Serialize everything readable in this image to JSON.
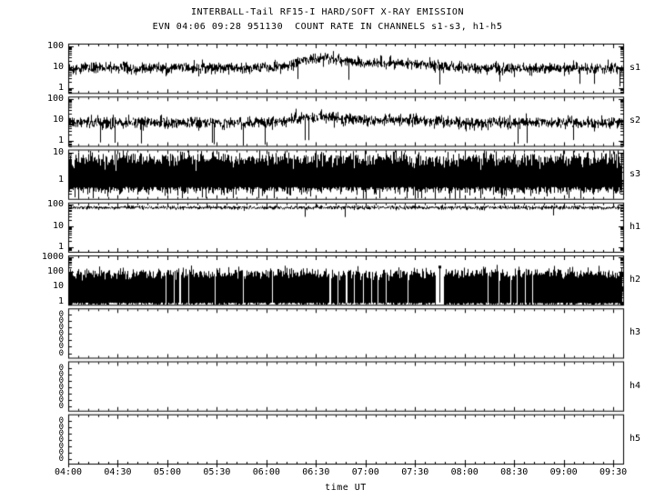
{
  "chart_data": {
    "type": "line",
    "title": "INTERBALL-Tail RF15-I HARD/SOFT X-RAY EMISSION",
    "subtitle": "EVN 04:06 09:28 951130  COUNT RATE IN CHANNELS s1-s3, h1-h5",
    "xlabel": "time UT",
    "x_range_hours": [
      4.0,
      9.6
    ],
    "x_major_tick_step_hours": 0.5,
    "x_minor_tick_step_hours": 0.1,
    "x_tick_labels": [
      "04:00",
      "04:30",
      "05:00",
      "05:30",
      "06:00",
      "06:30",
      "07:00",
      "07:30",
      "08:00",
      "08:30",
      "09:00",
      "09:30"
    ],
    "colors": {
      "foreground": "#000000",
      "background": "#ffffff"
    },
    "scale": "log",
    "legend": "none",
    "grid": false,
    "panels": [
      {
        "label": "s1",
        "scale": "log",
        "y_range": [
          0.6,
          130
        ],
        "y_tick_values": [
          100,
          10,
          1
        ],
        "y_tick_labels": [
          "100",
          "10",
          "1"
        ],
        "style": "line",
        "baseline": 9,
        "noise_sigma": 0.3,
        "bumps": [
          {
            "center": 6.55,
            "width": 0.18,
            "amp": 3.0
          },
          {
            "center": 7.25,
            "width": 0.3,
            "amp": 1.7
          }
        ],
        "downspike_prob": 0.008,
        "downspike_factor": 0.2
      },
      {
        "label": "s2",
        "scale": "log",
        "y_range": [
          0.6,
          130
        ],
        "y_tick_values": [
          100,
          10,
          1
        ],
        "y_tick_labels": [
          "100",
          "10",
          "1"
        ],
        "style": "line",
        "baseline": 7.5,
        "noise_sigma": 0.32,
        "bumps": [
          {
            "center": 6.5,
            "width": 0.2,
            "amp": 2.0
          },
          {
            "center": 7.3,
            "width": 0.3,
            "amp": 1.4
          }
        ],
        "downspike_prob": 0.012,
        "downspike_factor": 0.15
      },
      {
        "label": "s3",
        "scale": "log",
        "y_range": [
          0.2,
          13
        ],
        "y_tick_values": [
          10,
          1
        ],
        "y_tick_labels": [
          "10",
          "1"
        ],
        "style": "band",
        "band_hi": 6,
        "band_hi_sigma": 0.35,
        "band_lo": 0.55,
        "band_lo_sigma": 0.35,
        "downspike_prob": 0.02,
        "downspike_to": 0.21
      },
      {
        "label": "h1",
        "scale": "log",
        "y_range": [
          0.6,
          130
        ],
        "y_tick_values": [
          100,
          10,
          1
        ],
        "y_tick_labels": [
          "100",
          "10",
          "1"
        ],
        "style": "line",
        "baseline": 75,
        "noise_sigma": 0.1,
        "bumps": [],
        "downspike_prob": 0.006,
        "downspike_factor": 0.45
      },
      {
        "label": "h2",
        "scale": "log",
        "y_range": [
          0.6,
          1300
        ],
        "y_tick_values": [
          1000,
          100,
          10,
          1
        ],
        "y_tick_labels": [
          "1000",
          "100",
          "10",
          "1"
        ],
        "style": "band",
        "band_hi": 80,
        "band_hi_sigma": 0.45,
        "band_lo": 0.85,
        "band_lo_sigma": 0.25,
        "downspike_prob": 0.0,
        "downspike_to": 0.7,
        "gaps": [
          [
            4.98,
            4.99
          ],
          [
            5.06,
            5.07
          ],
          [
            5.12,
            5.13
          ],
          [
            5.21,
            5.22
          ],
          [
            5.47,
            5.48
          ],
          [
            5.76,
            5.77
          ],
          [
            6.05,
            6.06
          ],
          [
            6.63,
            6.645
          ],
          [
            6.71,
            6.72
          ],
          [
            6.8,
            6.81
          ],
          [
            6.88,
            6.89
          ],
          [
            6.97,
            6.98
          ],
          [
            7.05,
            7.06
          ],
          [
            7.12,
            7.13
          ],
          [
            7.2,
            7.21
          ],
          [
            7.42,
            7.43
          ],
          [
            7.7,
            7.79
          ],
          [
            8.23,
            8.24
          ],
          [
            8.34,
            8.35
          ],
          [
            8.46,
            8.47
          ],
          [
            8.52,
            8.53
          ],
          [
            8.6,
            8.61
          ],
          [
            8.68,
            8.69
          ]
        ],
        "gap_spike_t": 7.745,
        "gap_spike_top": 200
      },
      {
        "label": "h3",
        "scale": "log",
        "y_tick_labels": [
          "0",
          "0",
          "0",
          "0",
          "0",
          "0",
          "0"
        ],
        "y_tick_mode": "stack",
        "style": "empty"
      },
      {
        "label": "h4",
        "scale": "log",
        "y_tick_labels": [
          "0",
          "0",
          "0",
          "0",
          "0",
          "0",
          "0"
        ],
        "y_tick_mode": "stack",
        "style": "empty"
      },
      {
        "label": "h5",
        "scale": "log",
        "y_tick_labels": [
          "0",
          "0",
          "0",
          "0",
          "0",
          "0",
          "0"
        ],
        "y_tick_mode": "stack",
        "style": "empty"
      }
    ]
  }
}
